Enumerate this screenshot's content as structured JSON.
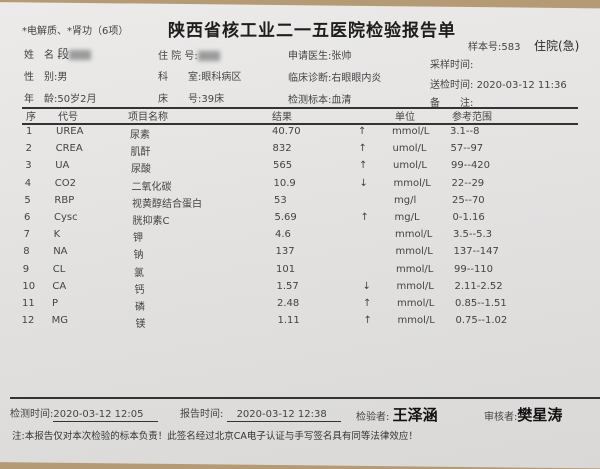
{
  "report": {
    "tests_label": "*电解质、*肾功（6项）",
    "title": "陕西省核工业二一五医院检验报告单",
    "sample_no": "样本号:583",
    "ward_type": "住院(急)"
  },
  "patient": {
    "name_label": "姓　名",
    "name_value": "段",
    "sex_label": "性　别:",
    "sex_value": "男",
    "age_label": "年　龄:",
    "age_value": "50岁2月",
    "hosp_no_label": "住 院 号:",
    "dept_label": "科　　室:",
    "dept_value": "眼科病区",
    "bed_label": "床　　号:",
    "bed_value": "39床",
    "doctor_label": "申请医生:",
    "doctor_value": "张帅",
    "diag_label": "临床诊断:",
    "diag_value": "右眼眼内炎",
    "specimen_label": "检测标本:",
    "specimen_value": "血清",
    "sampling_time_label": "采样时间:",
    "send_time_label": "送检时间:",
    "send_time_value": "2020-03-12 11:36",
    "remark_label": "备　　注:"
  },
  "table": {
    "headers": {
      "seq": "序",
      "code": "代号",
      "name": "项目名称",
      "result": "结果",
      "unit": "单位",
      "range": "参考范围"
    },
    "rows": [
      {
        "seq": "1",
        "code": "UREA",
        "name": "尿素",
        "result": "40.70",
        "flag": "↑",
        "unit": "mmol/L",
        "range": "3.1--8"
      },
      {
        "seq": "2",
        "code": "CREA",
        "name": "肌酐",
        "result": "832",
        "flag": "↑",
        "unit": "umol/L",
        "range": "57--97"
      },
      {
        "seq": "3",
        "code": "UA",
        "name": "尿酸",
        "result": "565",
        "flag": "↑",
        "unit": "umol/L",
        "range": "99--420"
      },
      {
        "seq": "4",
        "code": "CO2",
        "name": "二氧化碳",
        "result": "10.9",
        "flag": "↓",
        "unit": "mmol/L",
        "range": "22--29"
      },
      {
        "seq": "5",
        "code": "RBP",
        "name": "视黄醇结合蛋白",
        "result": "53",
        "flag": "",
        "unit": "mg/l",
        "range": "25--70"
      },
      {
        "seq": "6",
        "code": "Cysc",
        "name": "胱抑素C",
        "result": "5.69",
        "flag": "↑",
        "unit": "mg/L",
        "range": "0-1.16"
      },
      {
        "seq": "7",
        "code": "K",
        "name": "钾",
        "result": "4.6",
        "flag": "",
        "unit": "mmol/L",
        "range": "3.5--5.3"
      },
      {
        "seq": "8",
        "code": "NA",
        "name": "钠",
        "result": "137",
        "flag": "",
        "unit": "mmol/L",
        "range": "137--147"
      },
      {
        "seq": "9",
        "code": "CL",
        "name": "氯",
        "result": "101",
        "flag": "",
        "unit": "mmol/L",
        "range": "99--110"
      },
      {
        "seq": "10",
        "code": "CA",
        "name": "钙",
        "result": "1.57",
        "flag": "↓",
        "unit": "mmol/L",
        "range": "2.11-2.52"
      },
      {
        "seq": "11",
        "code": "P",
        "name": "磷",
        "result": "2.48",
        "flag": "↑",
        "unit": "mmol/L",
        "range": "0.85--1.51"
      },
      {
        "seq": "12",
        "code": "MG",
        "name": "镁",
        "result": "1.11",
        "flag": "↑",
        "unit": "mmol/L",
        "range": "0.75--1.02"
      }
    ]
  },
  "footer": {
    "test_time_label": "检测时间:",
    "test_time_value": "2020-03-12 12:05",
    "report_time_label": "报告时间:",
    "report_time_value": "2020-03-12 12:38",
    "tester_label": "检验者:",
    "tester_sig": "王泽涵",
    "reviewer_label": "审核者:",
    "reviewer_sig": "樊星涛",
    "note": "注:本报告仅对本次检验的标本负责！此签名经过北京CA电子认证与手写签名具有同等法律效应！"
  }
}
